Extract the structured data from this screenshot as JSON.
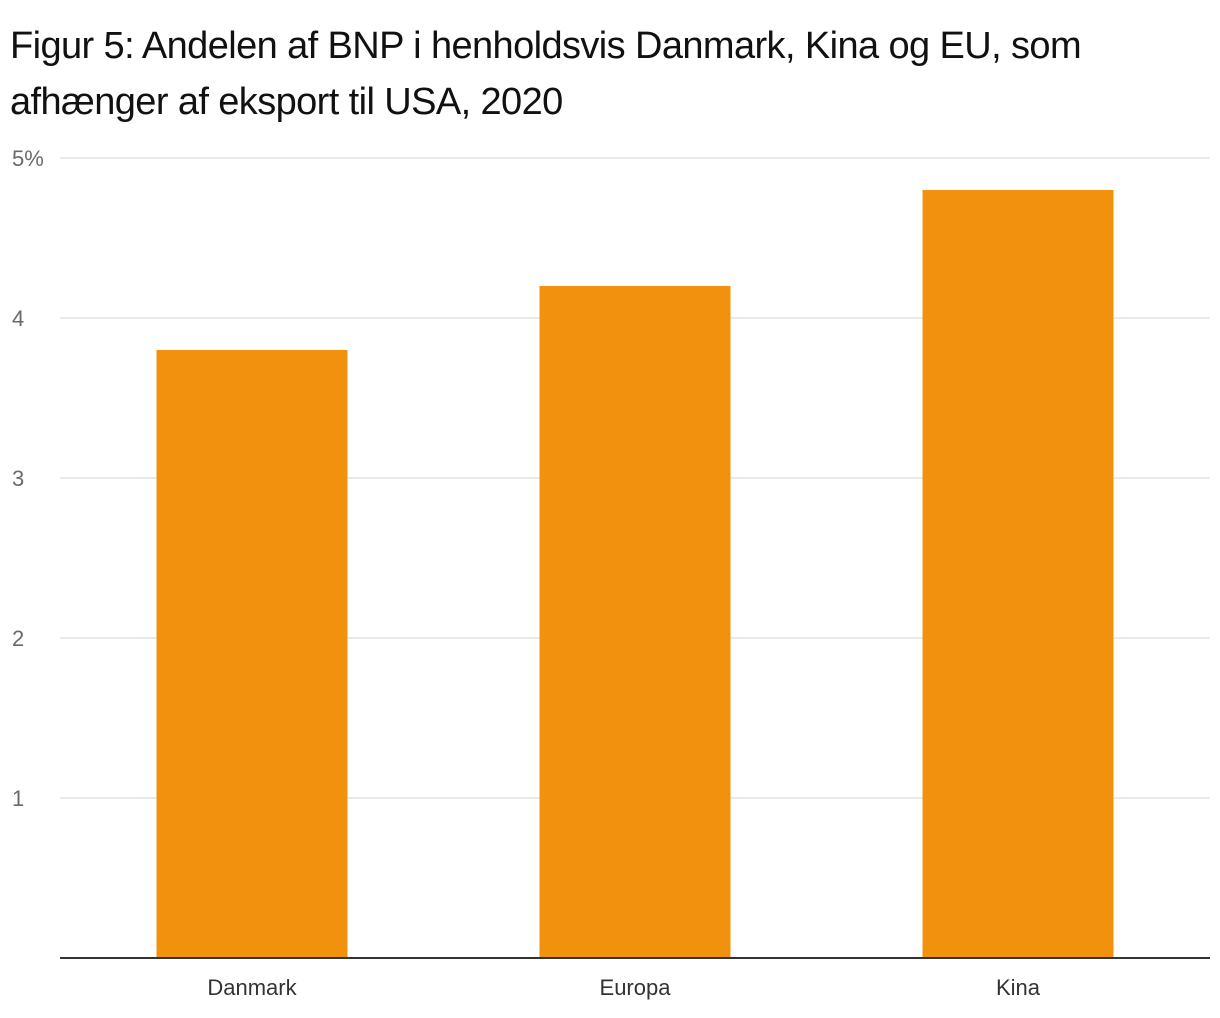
{
  "chart_data": {
    "type": "bar",
    "title": "Figur 5: Andelen af BNP i henholdsvis Danmark, Kina og EU, som afhænger af eksport til USA, 2020",
    "categories": [
      "Danmark",
      "Europa",
      "Kina"
    ],
    "values": [
      3.8,
      4.2,
      4.8
    ],
    "ylim": [
      0,
      5
    ],
    "yticks": [
      1,
      2,
      3,
      4,
      5
    ],
    "ytick_labels": [
      "1",
      "2",
      "3",
      "4",
      "5%"
    ],
    "xlabel": "",
    "ylabel": "",
    "grid": true,
    "legend": "none",
    "bar_color": "#F0920E",
    "grid_color": "#e3e3e3",
    "axis_color": "#333333"
  }
}
